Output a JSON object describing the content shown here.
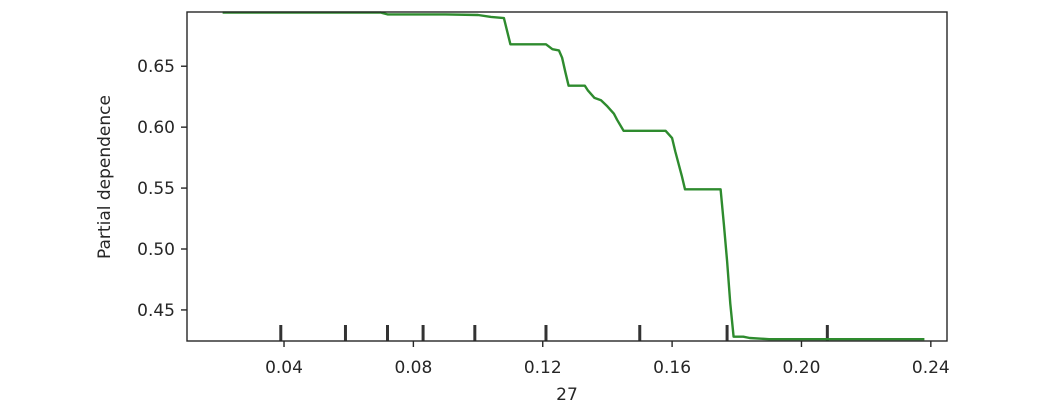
{
  "chart_data": {
    "type": "line",
    "title": "",
    "xlabel": "27",
    "ylabel": "Partial dependence",
    "xlim": [
      0.01,
      0.245
    ],
    "ylim": [
      0.4245,
      0.6945
    ],
    "grid": false,
    "legend": "none",
    "x_ticks": [
      0.04,
      0.08,
      0.12,
      0.16,
      0.2,
      0.24
    ],
    "x_tick_labels": [
      "0.04",
      "0.08",
      "0.12",
      "0.16",
      "0.20",
      "0.24"
    ],
    "y_ticks": [
      0.45,
      0.5,
      0.55,
      0.6,
      0.65
    ],
    "y_tick_labels": [
      "0.45",
      "0.50",
      "0.55",
      "0.60",
      "0.65"
    ],
    "series": [
      {
        "color": "#2e8b2e",
        "x": [
          0.021,
          0.065,
          0.07,
          0.072,
          0.09,
          0.1,
          0.104,
          0.108,
          0.11,
          0.121,
          0.123,
          0.125,
          0.126,
          0.127,
          0.128,
          0.133,
          0.134,
          0.136,
          0.138,
          0.14,
          0.142,
          0.143,
          0.145,
          0.15,
          0.158,
          0.16,
          0.161,
          0.163,
          0.164,
          0.166,
          0.173,
          0.175,
          0.176,
          0.177,
          0.178,
          0.179,
          0.182,
          0.184,
          0.19,
          0.21,
          0.238
        ],
        "y": [
          0.694,
          0.694,
          0.694,
          0.6925,
          0.6925,
          0.692,
          0.6905,
          0.6895,
          0.668,
          0.668,
          0.664,
          0.663,
          0.657,
          0.645,
          0.634,
          0.634,
          0.63,
          0.624,
          0.622,
          0.617,
          0.611,
          0.606,
          0.597,
          0.597,
          0.597,
          0.591,
          0.58,
          0.56,
          0.549,
          0.549,
          0.549,
          0.549,
          0.52,
          0.49,
          0.455,
          0.428,
          0.428,
          0.427,
          0.426,
          0.426,
          0.426
        ]
      }
    ],
    "rug": [
      0.039,
      0.059,
      0.072,
      0.083,
      0.099,
      0.121,
      0.15,
      0.177,
      0.208
    ]
  }
}
